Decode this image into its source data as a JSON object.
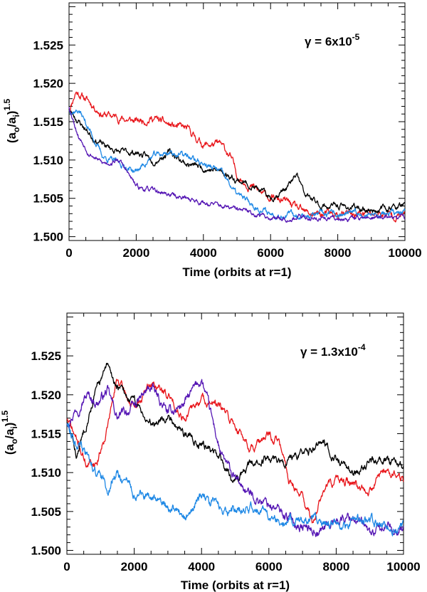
{
  "chart_data": [
    {
      "type": "line",
      "xlabel": "Time (orbits at r=1)",
      "ylabel": {
        "base": "(a",
        "sub1": "o",
        "mid": "/a",
        "sub2": "i",
        "close": ")",
        "sup": "1.5"
      },
      "annotation": {
        "prefix": "γ = 6x10",
        "exponent": "-5"
      },
      "xlim": [
        0,
        10000
      ],
      "ylim": [
        1.4995,
        1.5305
      ],
      "xticks": [
        0,
        2000,
        4000,
        6000,
        8000,
        10000
      ],
      "xtick_labels": [
        "0",
        "2000",
        "4000",
        "6000",
        "8000",
        "10000"
      ],
      "yticks": [
        1.5,
        1.505,
        1.51,
        1.515,
        1.52,
        1.525
      ],
      "ytick_labels": [
        "1.500",
        "1.505",
        "1.510",
        "1.515",
        "1.520",
        "1.525"
      ],
      "series": [
        {
          "color": "#e8161b",
          "seed": 11,
          "noise": 0.0006,
          "x": [
            0,
            200,
            500,
            1000,
            1500,
            2000,
            2500,
            3000,
            3500,
            4000,
            4500,
            4800,
            5000,
            5300,
            5600,
            6000,
            6500,
            7000,
            8000,
            9000,
            10000
          ],
          "y": [
            1.5165,
            1.519,
            1.518,
            1.516,
            1.5155,
            1.515,
            1.5155,
            1.5145,
            1.514,
            1.512,
            1.512,
            1.5105,
            1.508,
            1.507,
            1.506,
            1.505,
            1.5045,
            1.503,
            1.5028,
            1.503,
            1.5028
          ]
        },
        {
          "color": "#000000",
          "seed": 23,
          "noise": 0.0005,
          "x": [
            0,
            300,
            700,
            1000,
            1500,
            2000,
            2500,
            3000,
            3500,
            4000,
            4500,
            5000,
            5500,
            6000,
            6500,
            6800,
            7000,
            7500,
            8000,
            9000,
            10000
          ],
          "y": [
            1.5165,
            1.515,
            1.513,
            1.512,
            1.511,
            1.511,
            1.51,
            1.511,
            1.5095,
            1.509,
            1.5085,
            1.5075,
            1.5065,
            1.505,
            1.5065,
            1.508,
            1.5055,
            1.504,
            1.504,
            1.5035,
            1.504
          ]
        },
        {
          "color": "#1e88e5",
          "seed": 37,
          "noise": 0.0005,
          "x": [
            0,
            300,
            600,
            1000,
            1500,
            2000,
            2500,
            3000,
            3500,
            4000,
            4500,
            5000,
            5500,
            6000,
            7000,
            8000,
            9000,
            10000
          ],
          "y": [
            1.5165,
            1.5165,
            1.514,
            1.5105,
            1.5095,
            1.5085,
            1.5105,
            1.511,
            1.5105,
            1.5095,
            1.5085,
            1.5055,
            1.504,
            1.503,
            1.5028,
            1.5028,
            1.503,
            1.503
          ]
        },
        {
          "color": "#5516b4",
          "seed": 53,
          "noise": 0.0004,
          "x": [
            0,
            300,
            600,
            1000,
            1500,
            2000,
            2500,
            3000,
            3500,
            4000,
            4500,
            5000,
            5500,
            6000,
            7000,
            8000,
            9000,
            10000
          ],
          "y": [
            1.517,
            1.513,
            1.511,
            1.5095,
            1.51,
            1.5065,
            1.506,
            1.5055,
            1.505,
            1.5045,
            1.504,
            1.5035,
            1.503,
            1.5025,
            1.5025,
            1.5024,
            1.5025,
            1.5025
          ]
        }
      ]
    },
    {
      "type": "line",
      "xlabel": "Time (orbits at r=1)",
      "ylabel": {
        "base": "(a",
        "sub1": "o",
        "mid": "/a",
        "sub2": "i",
        "close": ")",
        "sup": "1.5"
      },
      "annotation": {
        "prefix": "γ = 1.3x10",
        "exponent": "-4"
      },
      "xlim": [
        0,
        10000
      ],
      "ylim": [
        1.4995,
        1.5305
      ],
      "xticks": [
        0,
        2000,
        4000,
        6000,
        8000,
        10000
      ],
      "xtick_labels": [
        "0",
        "2000",
        "4000",
        "6000",
        "8000",
        "10000"
      ],
      "yticks": [
        1.5,
        1.505,
        1.51,
        1.515,
        1.52,
        1.525
      ],
      "ytick_labels": [
        "1.500",
        "1.505",
        "1.510",
        "1.515",
        "1.520",
        "1.525"
      ],
      "series": [
        {
          "color": "#e8161b",
          "seed": 71,
          "noise": 0.0007,
          "x": [
            0,
            300,
            600,
            900,
            1200,
            1500,
            2000,
            2500,
            3000,
            3500,
            4000,
            4500,
            5000,
            5500,
            6000,
            6300,
            6600,
            7000,
            7300,
            7600,
            8000,
            8500,
            9000,
            9500,
            10000
          ],
          "y": [
            1.517,
            1.514,
            1.511,
            1.5115,
            1.516,
            1.522,
            1.518,
            1.5215,
            1.52,
            1.517,
            1.5195,
            1.5185,
            1.516,
            1.513,
            1.5145,
            1.514,
            1.509,
            1.507,
            1.5035,
            1.5075,
            1.509,
            1.5085,
            1.508,
            1.5105,
            1.509
          ]
        },
        {
          "color": "#000000",
          "seed": 83,
          "noise": 0.0007,
          "x": [
            0,
            300,
            600,
            900,
            1200,
            1500,
            2000,
            2500,
            3000,
            3500,
            4000,
            4500,
            5000,
            5500,
            6000,
            6500,
            7000,
            7500,
            8000,
            8500,
            9000,
            9500,
            10000
          ],
          "y": [
            1.5165,
            1.512,
            1.517,
            1.521,
            1.5235,
            1.521,
            1.519,
            1.5165,
            1.5175,
            1.515,
            1.514,
            1.512,
            1.509,
            1.511,
            1.512,
            1.5115,
            1.512,
            1.514,
            1.512,
            1.51,
            1.511,
            1.5115,
            1.5105
          ]
        },
        {
          "color": "#5516b4",
          "seed": 97,
          "noise": 0.0008,
          "x": [
            0,
            300,
            600,
            900,
            1200,
            1500,
            2000,
            2500,
            3000,
            3500,
            4000,
            4300,
            4600,
            5000,
            5500,
            6000,
            6500,
            7000,
            7500,
            8000,
            8500,
            9000,
            9500,
            10000
          ],
          "y": [
            1.5165,
            1.5185,
            1.52,
            1.519,
            1.5205,
            1.517,
            1.5185,
            1.521,
            1.5175,
            1.519,
            1.522,
            1.517,
            1.512,
            1.509,
            1.507,
            1.506,
            1.5045,
            1.503,
            1.5025,
            1.504,
            1.5045,
            1.502,
            1.503,
            1.503
          ]
        },
        {
          "color": "#1e88e5",
          "seed": 113,
          "noise": 0.0008,
          "x": [
            0,
            300,
            600,
            900,
            1200,
            1500,
            2000,
            2500,
            3000,
            3500,
            4000,
            4500,
            5000,
            5500,
            6000,
            6500,
            7000,
            7500,
            8000,
            8500,
            9000,
            9500,
            10000
          ],
          "y": [
            1.5165,
            1.514,
            1.512,
            1.51,
            1.508,
            1.51,
            1.5075,
            1.5065,
            1.506,
            1.504,
            1.507,
            1.5055,
            1.505,
            1.5055,
            1.5045,
            1.504,
            1.5035,
            1.504,
            1.503,
            1.5035,
            1.504,
            1.503,
            1.503
          ]
        }
      ]
    }
  ]
}
